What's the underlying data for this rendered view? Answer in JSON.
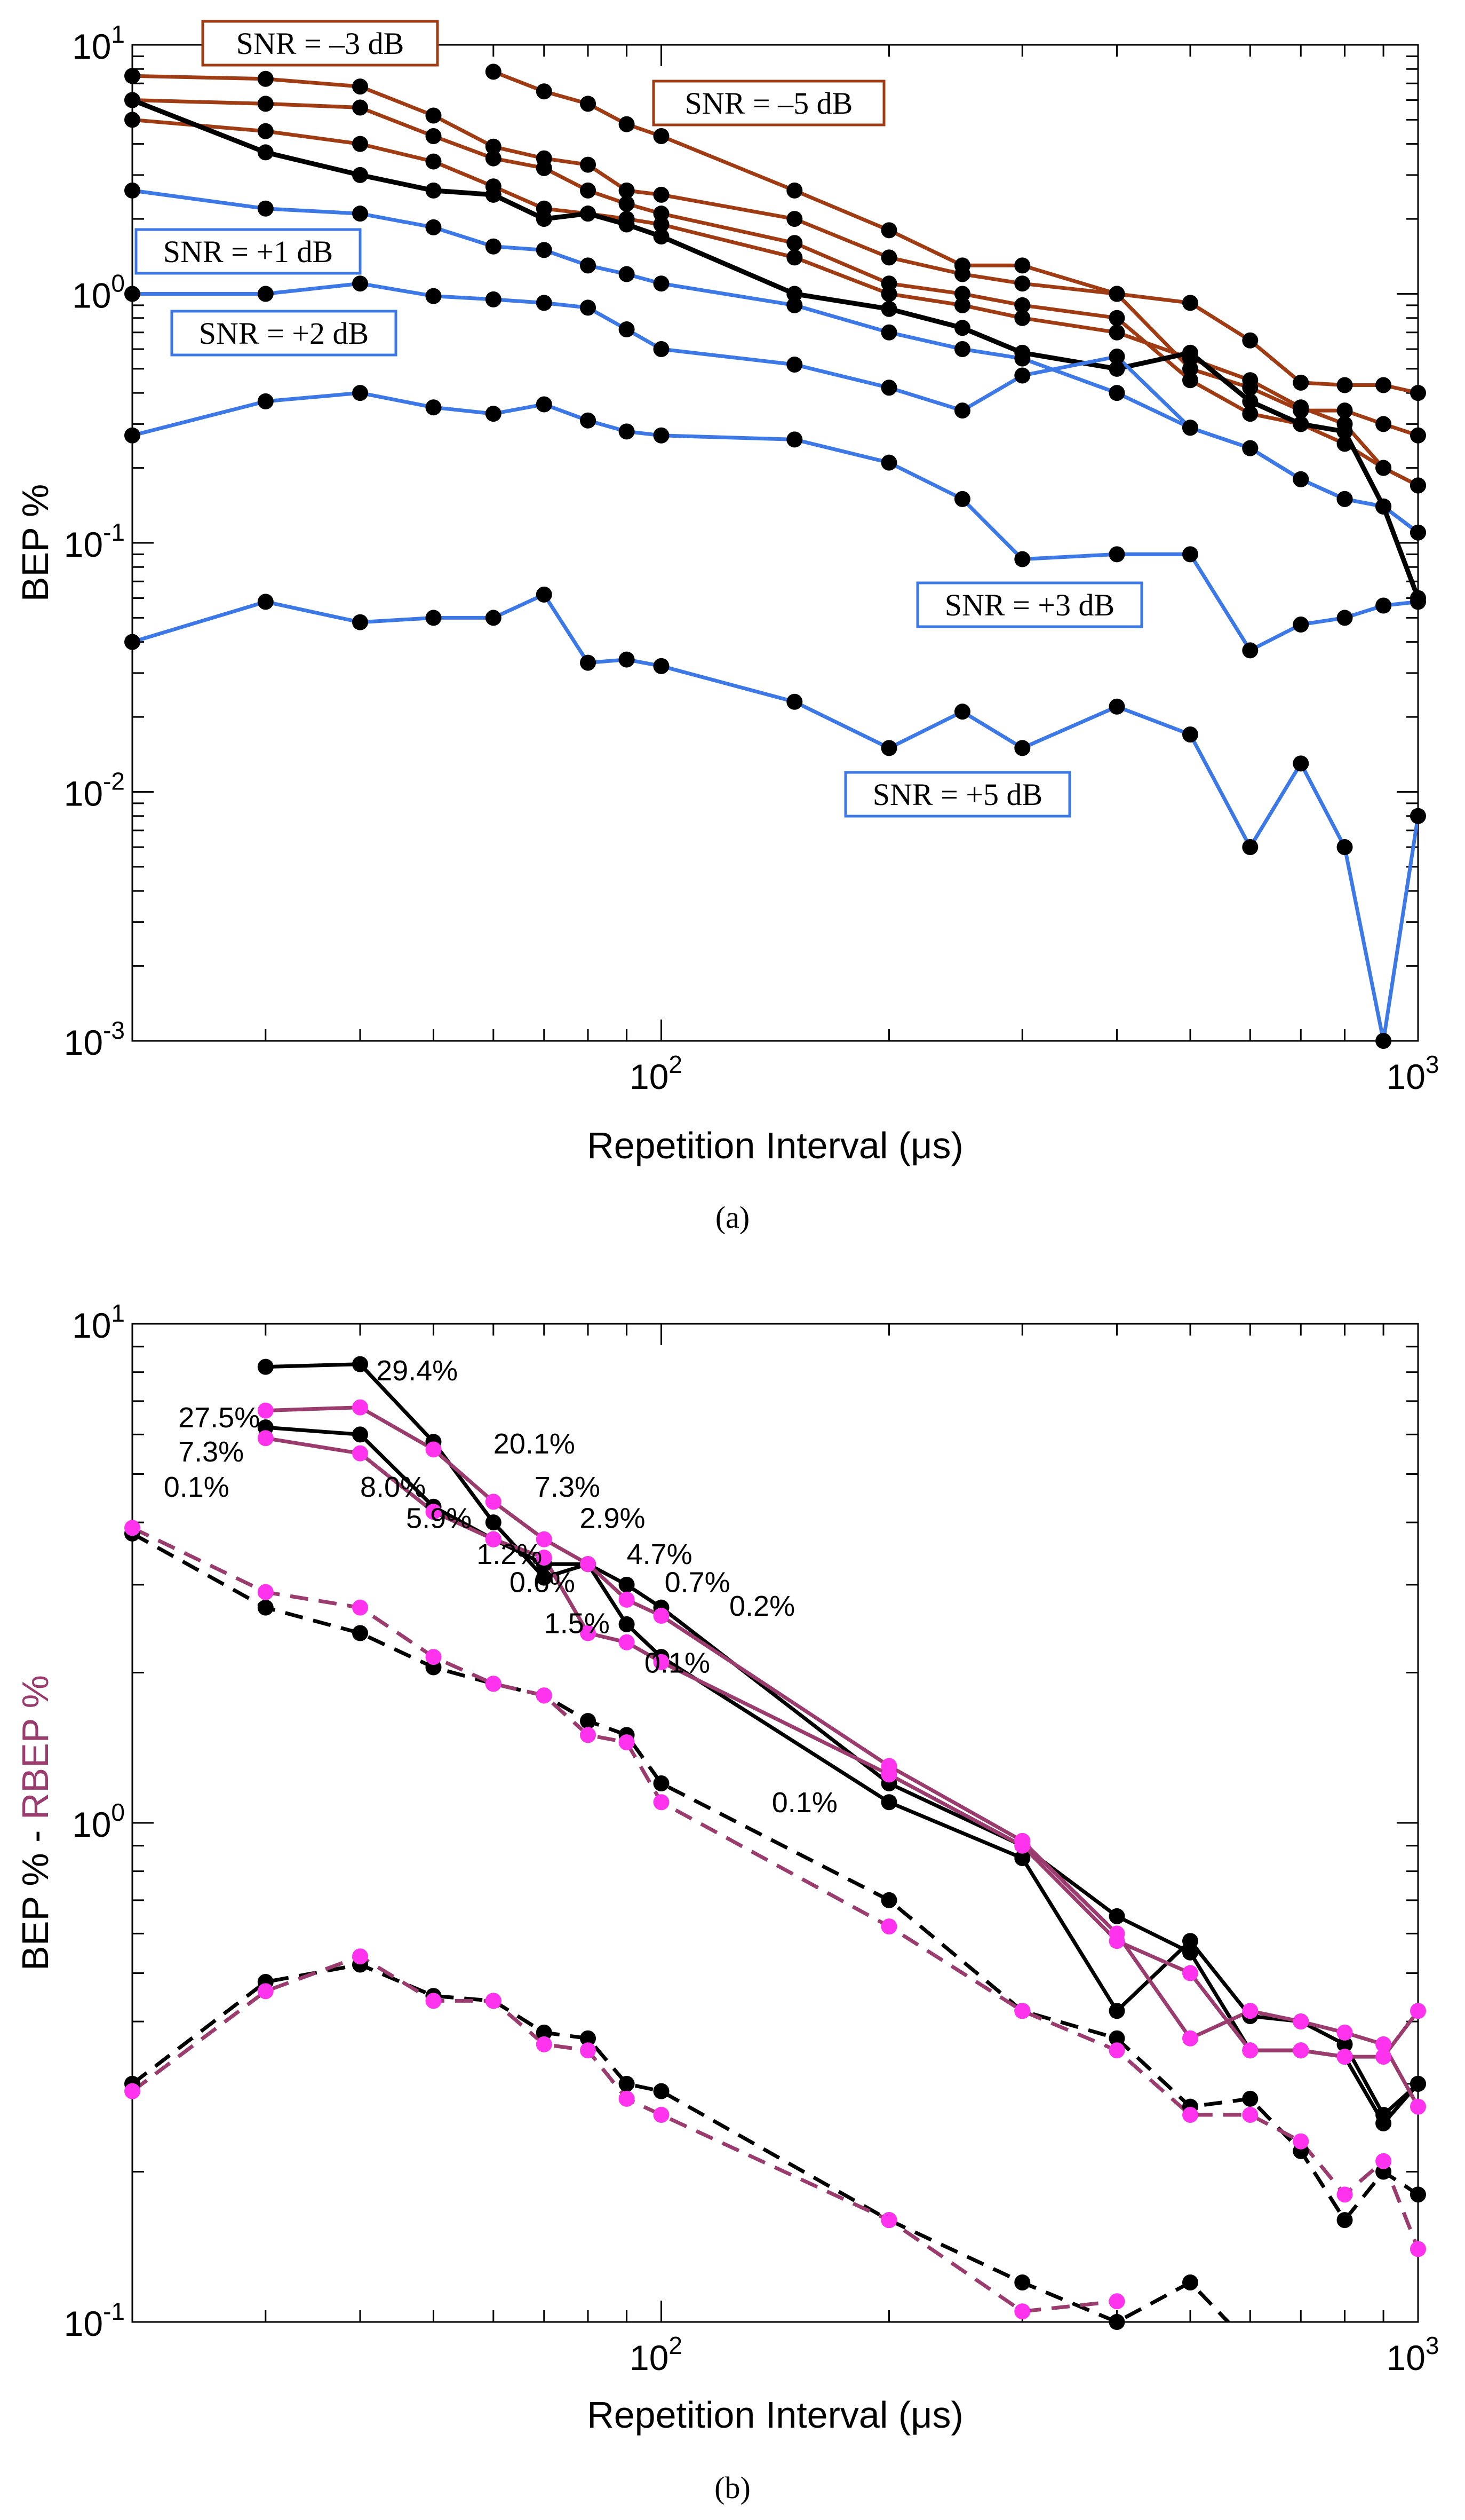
{
  "chart_data": [
    {
      "type": "line",
      "panel_caption": "(a)",
      "xlabel": "Repetition Interval (μs)",
      "ylabel": "BEP %",
      "x_scale": "log",
      "y_scale": "log",
      "xlim": [
        20,
        1000
      ],
      "ylim": [
        0.001,
        10
      ],
      "x_ticks": [
        "10^2",
        "10^3"
      ],
      "y_ticks": [
        "10^-3",
        "10^-2",
        "10^-1",
        "10^0",
        "10^1"
      ],
      "colors": {
        "red": "#a03c14",
        "blue": "#3c78e6",
        "black": "#000000",
        "marker": "#000000"
      },
      "annotations": [
        "SNR = –3 dB",
        "SNR = –5 dB",
        "SNR = +1 dB",
        "SNR = +2 dB",
        "SNR = +3 dB",
        "SNR = +5 dB"
      ],
      "series": [
        {
          "color": "red",
          "x": [
            20,
            30,
            40,
            50,
            60,
            70,
            80,
            90,
            100,
            150,
            200,
            250,
            300,
            400,
            500,
            600,
            700,
            800,
            900,
            1000
          ],
          "y": [
            7.5,
            7.3,
            6.8,
            5.2,
            3.9,
            3.5,
            3.3,
            2.6,
            2.5,
            2.0,
            1.4,
            1.2,
            1.1,
            1.0,
            0.5,
            0.42,
            0.34,
            0.34,
            0.3,
            0.27
          ]
        },
        {
          "color": "red",
          "x": [
            20,
            30,
            40,
            50,
            60,
            70,
            80,
            90,
            100,
            150,
            200,
            250,
            300,
            400,
            500,
            600,
            700,
            800,
            900,
            1000
          ],
          "y": [
            6.0,
            5.8,
            5.6,
            4.3,
            3.5,
            3.2,
            2.6,
            2.3,
            2.1,
            1.6,
            1.1,
            1.0,
            0.9,
            0.8,
            0.45,
            0.33,
            0.3,
            0.25,
            0.2,
            0.17
          ]
        },
        {
          "color": "red",
          "x": [
            20,
            30,
            40,
            50,
            60,
            70,
            80,
            90,
            100,
            150,
            200,
            250,
            300,
            400,
            500,
            600,
            700,
            800,
            900,
            1000
          ],
          "y": [
            5.0,
            4.5,
            4.0,
            3.4,
            2.7,
            2.2,
            2.1,
            2.0,
            1.9,
            1.4,
            1.0,
            0.9,
            0.8,
            0.7,
            0.55,
            0.45,
            0.35,
            0.3,
            0.2,
            0.17
          ]
        },
        {
          "color": "red",
          "x": [
            60,
            70,
            80,
            90,
            100,
            150,
            200,
            250,
            300,
            400,
            500,
            600,
            700,
            800,
            900,
            1000
          ],
          "y": [
            7.8,
            6.5,
            5.8,
            4.8,
            4.3,
            2.6,
            1.8,
            1.3,
            1.3,
            1.0,
            0.92,
            0.65,
            0.44,
            0.43,
            0.43,
            0.4
          ]
        },
        {
          "color": "black",
          "x": [
            20,
            30,
            40,
            50,
            60,
            70,
            80,
            90,
            100,
            150,
            200,
            250,
            300,
            400,
            500,
            600,
            700,
            800,
            900,
            1000
          ],
          "y": [
            6.0,
            3.7,
            3.0,
            2.6,
            2.5,
            2.0,
            2.1,
            1.9,
            1.7,
            1.0,
            0.87,
            0.73,
            0.58,
            0.5,
            0.58,
            0.37,
            0.3,
            0.28,
            0.14,
            0.06
          ]
        },
        {
          "color": "blue",
          "x": [
            20,
            30,
            40,
            50,
            60,
            70,
            80,
            90,
            100,
            150,
            200,
            250,
            300,
            400,
            500,
            600,
            700,
            800,
            900,
            1000
          ],
          "y": [
            2.6,
            2.2,
            2.1,
            1.85,
            1.55,
            1.5,
            1.3,
            1.2,
            1.1,
            0.9,
            0.7,
            0.6,
            0.55,
            0.4,
            0.29,
            0.24,
            0.18,
            0.15,
            0.14,
            0.11
          ]
        },
        {
          "color": "blue",
          "x": [
            20,
            30,
            40,
            50,
            60,
            70,
            80,
            90,
            100,
            150,
            200,
            250,
            300,
            400,
            500,
            600,
            700,
            800,
            900,
            1000
          ],
          "y": [
            1.0,
            1.0,
            1.1,
            0.98,
            0.95,
            0.92,
            0.88,
            0.72,
            0.6,
            0.52,
            0.42,
            0.34,
            0.47,
            0.56,
            0.29,
            0.24,
            0.18,
            0.15,
            0.14,
            0.11
          ]
        },
        {
          "color": "blue",
          "x": [
            20,
            30,
            40,
            50,
            60,
            70,
            80,
            90,
            100,
            150,
            200,
            250,
            300,
            400,
            500,
            600,
            700,
            800,
            900,
            1000
          ],
          "y": [
            0.27,
            0.37,
            0.4,
            0.35,
            0.33,
            0.36,
            0.31,
            0.28,
            0.27,
            0.26,
            0.21,
            0.15,
            0.086,
            0.09,
            0.09,
            0.037,
            0.047,
            0.05,
            0.056,
            0.058
          ]
        },
        {
          "color": "blue",
          "x": [
            20,
            30,
            40,
            50,
            60,
            70,
            80,
            90,
            100,
            150,
            200,
            250,
            300,
            400,
            500,
            600,
            700,
            800,
            900,
            1000
          ],
          "y": [
            0.04,
            0.058,
            0.048,
            0.05,
            0.05,
            0.062,
            0.033,
            0.034,
            0.032,
            0.023,
            0.015,
            0.021,
            0.015,
            0.022,
            0.017,
            0.006,
            0.013,
            0.006,
            0.001,
            0.008
          ]
        }
      ]
    },
    {
      "type": "line",
      "panel_caption": "(b)",
      "xlabel": "Repetition Interval (μs)",
      "ylabel_parts": [
        "BEP % - ",
        "RBEP %"
      ],
      "x_scale": "log",
      "y_scale": "log",
      "xlim": [
        20,
        1000
      ],
      "ylim": [
        0.1,
        10
      ],
      "x_ticks": [
        "10^2",
        "10^3"
      ],
      "y_ticks": [
        "10^-1",
        "10^0",
        "10^1"
      ],
      "colors": {
        "black": "#000000",
        "purple": "#9b3c6e",
        "marker_black": "#000000",
        "marker_magenta": "#ff33ee"
      },
      "annotations": [
        {
          "text": "27.5%",
          "x": 23,
          "y": 6.2
        },
        {
          "text": "7.3%",
          "x": 23,
          "y": 5.3
        },
        {
          "text": "29.4%",
          "x": 42,
          "y": 7.7
        },
        {
          "text": "0.1%",
          "x": 22,
          "y": 4.5
        },
        {
          "text": "8.0%",
          "x": 40,
          "y": 4.5
        },
        {
          "text": "20.1%",
          "x": 60,
          "y": 5.5
        },
        {
          "text": "7.3%",
          "x": 68,
          "y": 4.5
        },
        {
          "text": "5.9%",
          "x": 46,
          "y": 3.9
        },
        {
          "text": "2.9%",
          "x": 78,
          "y": 3.9
        },
        {
          "text": "1.2%",
          "x": 57,
          "y": 3.3
        },
        {
          "text": "4.7%",
          "x": 90,
          "y": 3.3
        },
        {
          "text": "0.6%",
          "x": 63,
          "y": 2.9
        },
        {
          "text": "0.7%",
          "x": 101,
          "y": 2.9
        },
        {
          "text": "0.2%",
          "x": 123,
          "y": 2.6
        },
        {
          "text": "1.5%",
          "x": 70,
          "y": 2.4
        },
        {
          "text": "0.1%",
          "x": 95,
          "y": 2.0
        },
        {
          "text": "0.1%",
          "x": 140,
          "y": 1.05
        }
      ],
      "series": [
        {
          "color": "black",
          "dash": false,
          "marker": "black",
          "x": [
            30,
            40,
            50,
            60,
            70,
            80,
            90,
            100,
            200,
            300,
            400,
            500,
            600,
            700,
            800,
            900,
            1000
          ],
          "y": [
            8.2,
            8.3,
            5.8,
            4.0,
            3.1,
            3.3,
            2.5,
            2.15,
            1.1,
            0.85,
            0.42,
            0.58,
            0.41,
            0.4,
            0.36,
            0.26,
            0.3
          ]
        },
        {
          "color": "black",
          "dash": false,
          "marker": "black",
          "x": [
            30,
            40,
            50,
            60,
            70,
            80,
            90,
            100,
            200,
            300,
            400,
            500,
            600,
            700,
            800,
            900,
            1000
          ],
          "y": [
            6.2,
            6.0,
            4.3,
            3.7,
            3.3,
            3.3,
            3.0,
            2.7,
            1.2,
            0.9,
            0.65,
            0.55,
            0.35,
            0.35,
            0.34,
            0.25,
            0.3
          ]
        },
        {
          "color": "purple",
          "dash": false,
          "marker": "magenta",
          "x": [
            30,
            40,
            50,
            60,
            70,
            80,
            90,
            100,
            200,
            300,
            400,
            500,
            600,
            700,
            800,
            900,
            1000
          ],
          "y": [
            6.7,
            6.8,
            5.6,
            4.4,
            3.7,
            3.3,
            2.8,
            2.6,
            1.3,
            0.92,
            0.6,
            0.37,
            0.42,
            0.4,
            0.38,
            0.36,
            0.27
          ]
        },
        {
          "color": "purple",
          "dash": false,
          "marker": "magenta",
          "x": [
            30,
            40,
            50,
            60,
            70,
            80,
            90,
            100,
            200,
            300,
            400,
            500,
            600,
            700,
            800,
            900,
            1000
          ],
          "y": [
            5.9,
            5.5,
            4.2,
            3.7,
            3.4,
            2.4,
            2.3,
            2.1,
            1.25,
            0.9,
            0.58,
            0.5,
            0.35,
            0.35,
            0.34,
            0.34,
            0.42
          ]
        },
        {
          "color": "black",
          "dash": true,
          "marker": "black",
          "x": [
            20,
            30,
            40,
            50,
            60,
            70,
            80,
            90,
            100,
            200,
            300,
            400,
            500,
            600,
            700,
            800,
            900,
            1000
          ],
          "y": [
            3.8,
            2.7,
            2.4,
            2.05,
            1.9,
            1.8,
            1.6,
            1.5,
            1.2,
            0.7,
            0.42,
            0.37,
            0.27,
            0.28,
            0.22,
            0.16,
            0.2,
            0.18
          ]
        },
        {
          "color": "purple",
          "dash": true,
          "marker": "magenta",
          "x": [
            20,
            30,
            40,
            50,
            60,
            70,
            80,
            90,
            100,
            200,
            300,
            400,
            500,
            600,
            700,
            800,
            900,
            1000
          ],
          "y": [
            3.9,
            2.9,
            2.7,
            2.15,
            1.9,
            1.8,
            1.5,
            1.45,
            1.1,
            0.62,
            0.42,
            0.35,
            0.26,
            0.26,
            0.23,
            0.18,
            0.21,
            0.14
          ]
        },
        {
          "color": "black",
          "dash": true,
          "marker": "black",
          "x": [
            20,
            30,
            40,
            50,
            60,
            70,
            80,
            90,
            100,
            200,
            300,
            400,
            500,
            600
          ],
          "y": [
            0.3,
            0.48,
            0.52,
            0.45,
            0.44,
            0.38,
            0.37,
            0.3,
            0.29,
            0.16,
            0.12,
            0.1,
            0.12,
            0.09
          ]
        },
        {
          "color": "purple",
          "dash": true,
          "marker": "magenta",
          "x": [
            20,
            30,
            40,
            50,
            60,
            70,
            80,
            90,
            100,
            200,
            300,
            400
          ],
          "y": [
            0.29,
            0.46,
            0.54,
            0.44,
            0.44,
            0.36,
            0.35,
            0.28,
            0.26,
            0.16,
            0.105,
            0.11
          ]
        }
      ]
    }
  ]
}
